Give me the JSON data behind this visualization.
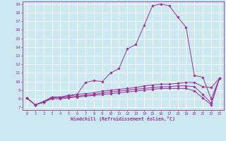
{
  "xlabel": "Windchill (Refroidissement éolien,°C)",
  "background_color": "#cce8f0",
  "line_color": "#993399",
  "grid_color": "#ffffff",
  "x_ticks": [
    0,
    1,
    2,
    3,
    4,
    5,
    6,
    7,
    8,
    9,
    10,
    11,
    12,
    13,
    14,
    15,
    16,
    17,
    18,
    19,
    20,
    21,
    22,
    23
  ],
  "y_ticks": [
    7,
    8,
    9,
    10,
    11,
    12,
    13,
    14,
    15,
    16,
    17,
    18,
    19
  ],
  "xlim": [
    0,
    23
  ],
  "ylim": [
    7,
    19
  ],
  "series": [
    [
      8.1,
      7.3,
      7.6,
      8.2,
      8.2,
      8.4,
      8.5,
      9.9,
      10.1,
      10.0,
      11.0,
      11.5,
      13.8,
      14.3,
      16.5,
      18.8,
      19.0,
      18.8,
      17.5,
      16.3,
      10.7,
      10.5,
      8.0,
      10.4
    ],
    [
      8.1,
      7.3,
      7.7,
      8.2,
      8.2,
      8.3,
      8.5,
      8.6,
      8.7,
      8.9,
      9.0,
      9.1,
      9.2,
      9.3,
      9.5,
      9.6,
      9.7,
      9.7,
      9.8,
      9.9,
      9.9,
      9.4,
      9.3,
      10.4
    ],
    [
      8.1,
      7.3,
      7.6,
      8.1,
      8.1,
      8.2,
      8.3,
      8.4,
      8.5,
      8.7,
      8.8,
      8.9,
      9.0,
      9.1,
      9.2,
      9.3,
      9.4,
      9.4,
      9.5,
      9.5,
      9.4,
      8.5,
      7.5,
      10.4
    ],
    [
      8.1,
      7.3,
      7.6,
      8.0,
      8.0,
      8.1,
      8.2,
      8.3,
      8.4,
      8.5,
      8.6,
      8.7,
      8.8,
      8.9,
      9.0,
      9.1,
      9.2,
      9.2,
      9.2,
      9.2,
      8.9,
      8.1,
      7.3,
      10.4
    ]
  ]
}
